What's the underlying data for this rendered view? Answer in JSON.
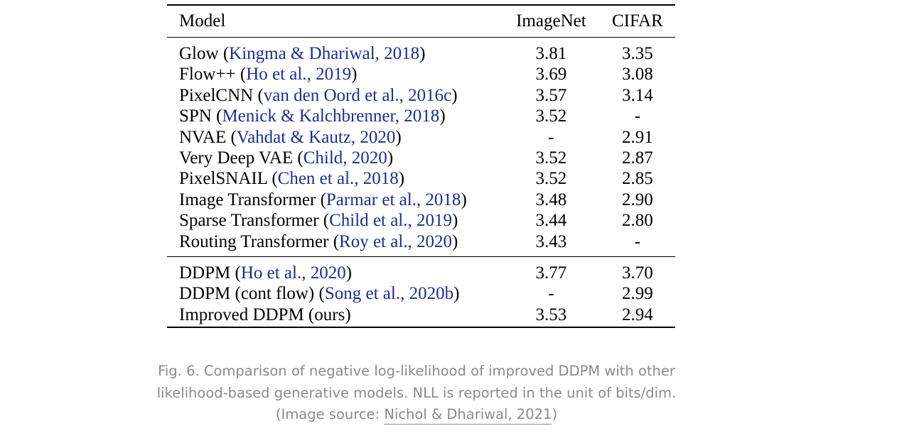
{
  "table": {
    "headers": {
      "model": "Model",
      "imagenet": "ImageNet",
      "cifar": "CIFAR"
    },
    "group1": [
      {
        "name": "Glow ",
        "open": "(",
        "cite": "Kingma & Dhariwal, 2018",
        "close": ")",
        "imagenet": "3.81",
        "cifar": "3.35",
        "imagenet_bold": false,
        "cifar_bold": false
      },
      {
        "name": "Flow++ ",
        "open": "(",
        "cite": "Ho et al., 2019",
        "close": ")",
        "imagenet": "3.69",
        "cifar": "3.08",
        "imagenet_bold": false,
        "cifar_bold": false
      },
      {
        "name": "PixelCNN ",
        "open": "(",
        "cite": "van den Oord et al., 2016c",
        "close": ")",
        "imagenet": "3.57",
        "cifar": "3.14",
        "imagenet_bold": false,
        "cifar_bold": false
      },
      {
        "name": "SPN ",
        "open": "(",
        "cite": "Menick & Kalchbrenner, 2018",
        "close": ")",
        "imagenet": "3.52",
        "cifar": "-",
        "imagenet_bold": false,
        "cifar_bold": false
      },
      {
        "name": "NVAE ",
        "open": "(",
        "cite": "Vahdat & Kautz, 2020",
        "close": ")",
        "imagenet": "-",
        "cifar": "2.91",
        "imagenet_bold": false,
        "cifar_bold": false
      },
      {
        "name": "Very Deep VAE ",
        "open": "(",
        "cite": "Child, 2020",
        "close": ")",
        "imagenet": "3.52",
        "cifar": "2.87",
        "imagenet_bold": false,
        "cifar_bold": false
      },
      {
        "name": "PixelSNAIL ",
        "open": "(",
        "cite": "Chen et al., 2018",
        "close": ")",
        "imagenet": "3.52",
        "cifar": "2.85",
        "imagenet_bold": false,
        "cifar_bold": false
      },
      {
        "name": "Image Transformer ",
        "open": "(",
        "cite": "Parmar et al., 2018",
        "close": ")",
        "imagenet": "3.48",
        "cifar": "2.90",
        "imagenet_bold": false,
        "cifar_bold": false
      },
      {
        "name": "Sparse Transformer ",
        "open": "(",
        "cite": "Child et al., 2019",
        "close": ")",
        "imagenet": "3.44",
        "cifar": "2.80",
        "imagenet_bold": false,
        "cifar_bold": true
      },
      {
        "name": "Routing Transformer ",
        "open": "(",
        "cite": "Roy et al., 2020",
        "close": ")",
        "imagenet": "3.43",
        "cifar": "-",
        "imagenet_bold": true,
        "cifar_bold": false
      }
    ],
    "group2": [
      {
        "name": "DDPM ",
        "open": "(",
        "cite": "Ho et al., 2020",
        "close": ")",
        "imagenet": "3.77",
        "cifar": "3.70",
        "imagenet_bold": false,
        "cifar_bold": false
      },
      {
        "name": "DDPM (cont flow) ",
        "open": "(",
        "cite": "Song et al., 2020b",
        "close": ")",
        "imagenet": "-",
        "cifar": "2.99",
        "imagenet_bold": false,
        "cifar_bold": false
      },
      {
        "name": "Improved DDPM (ours)",
        "open": "",
        "cite": "",
        "close": "",
        "imagenet": "3.53",
        "cifar": "2.94",
        "imagenet_bold": true,
        "cifar_bold": true
      }
    ]
  },
  "caption": {
    "line1": "Fig. 6. Comparison of negative log-likelihood of improved DDPM with other",
    "line2": "likelihood-based generative models. NLL is reported in the unit of bits/dim.",
    "line3_prefix": "(Image source: ",
    "line3_link": "Nichol & Dhariwal, 2021",
    "line3_suffix": ")"
  },
  "colors": {
    "citation": "#1f2f87",
    "caption": "#8a8a8a"
  }
}
